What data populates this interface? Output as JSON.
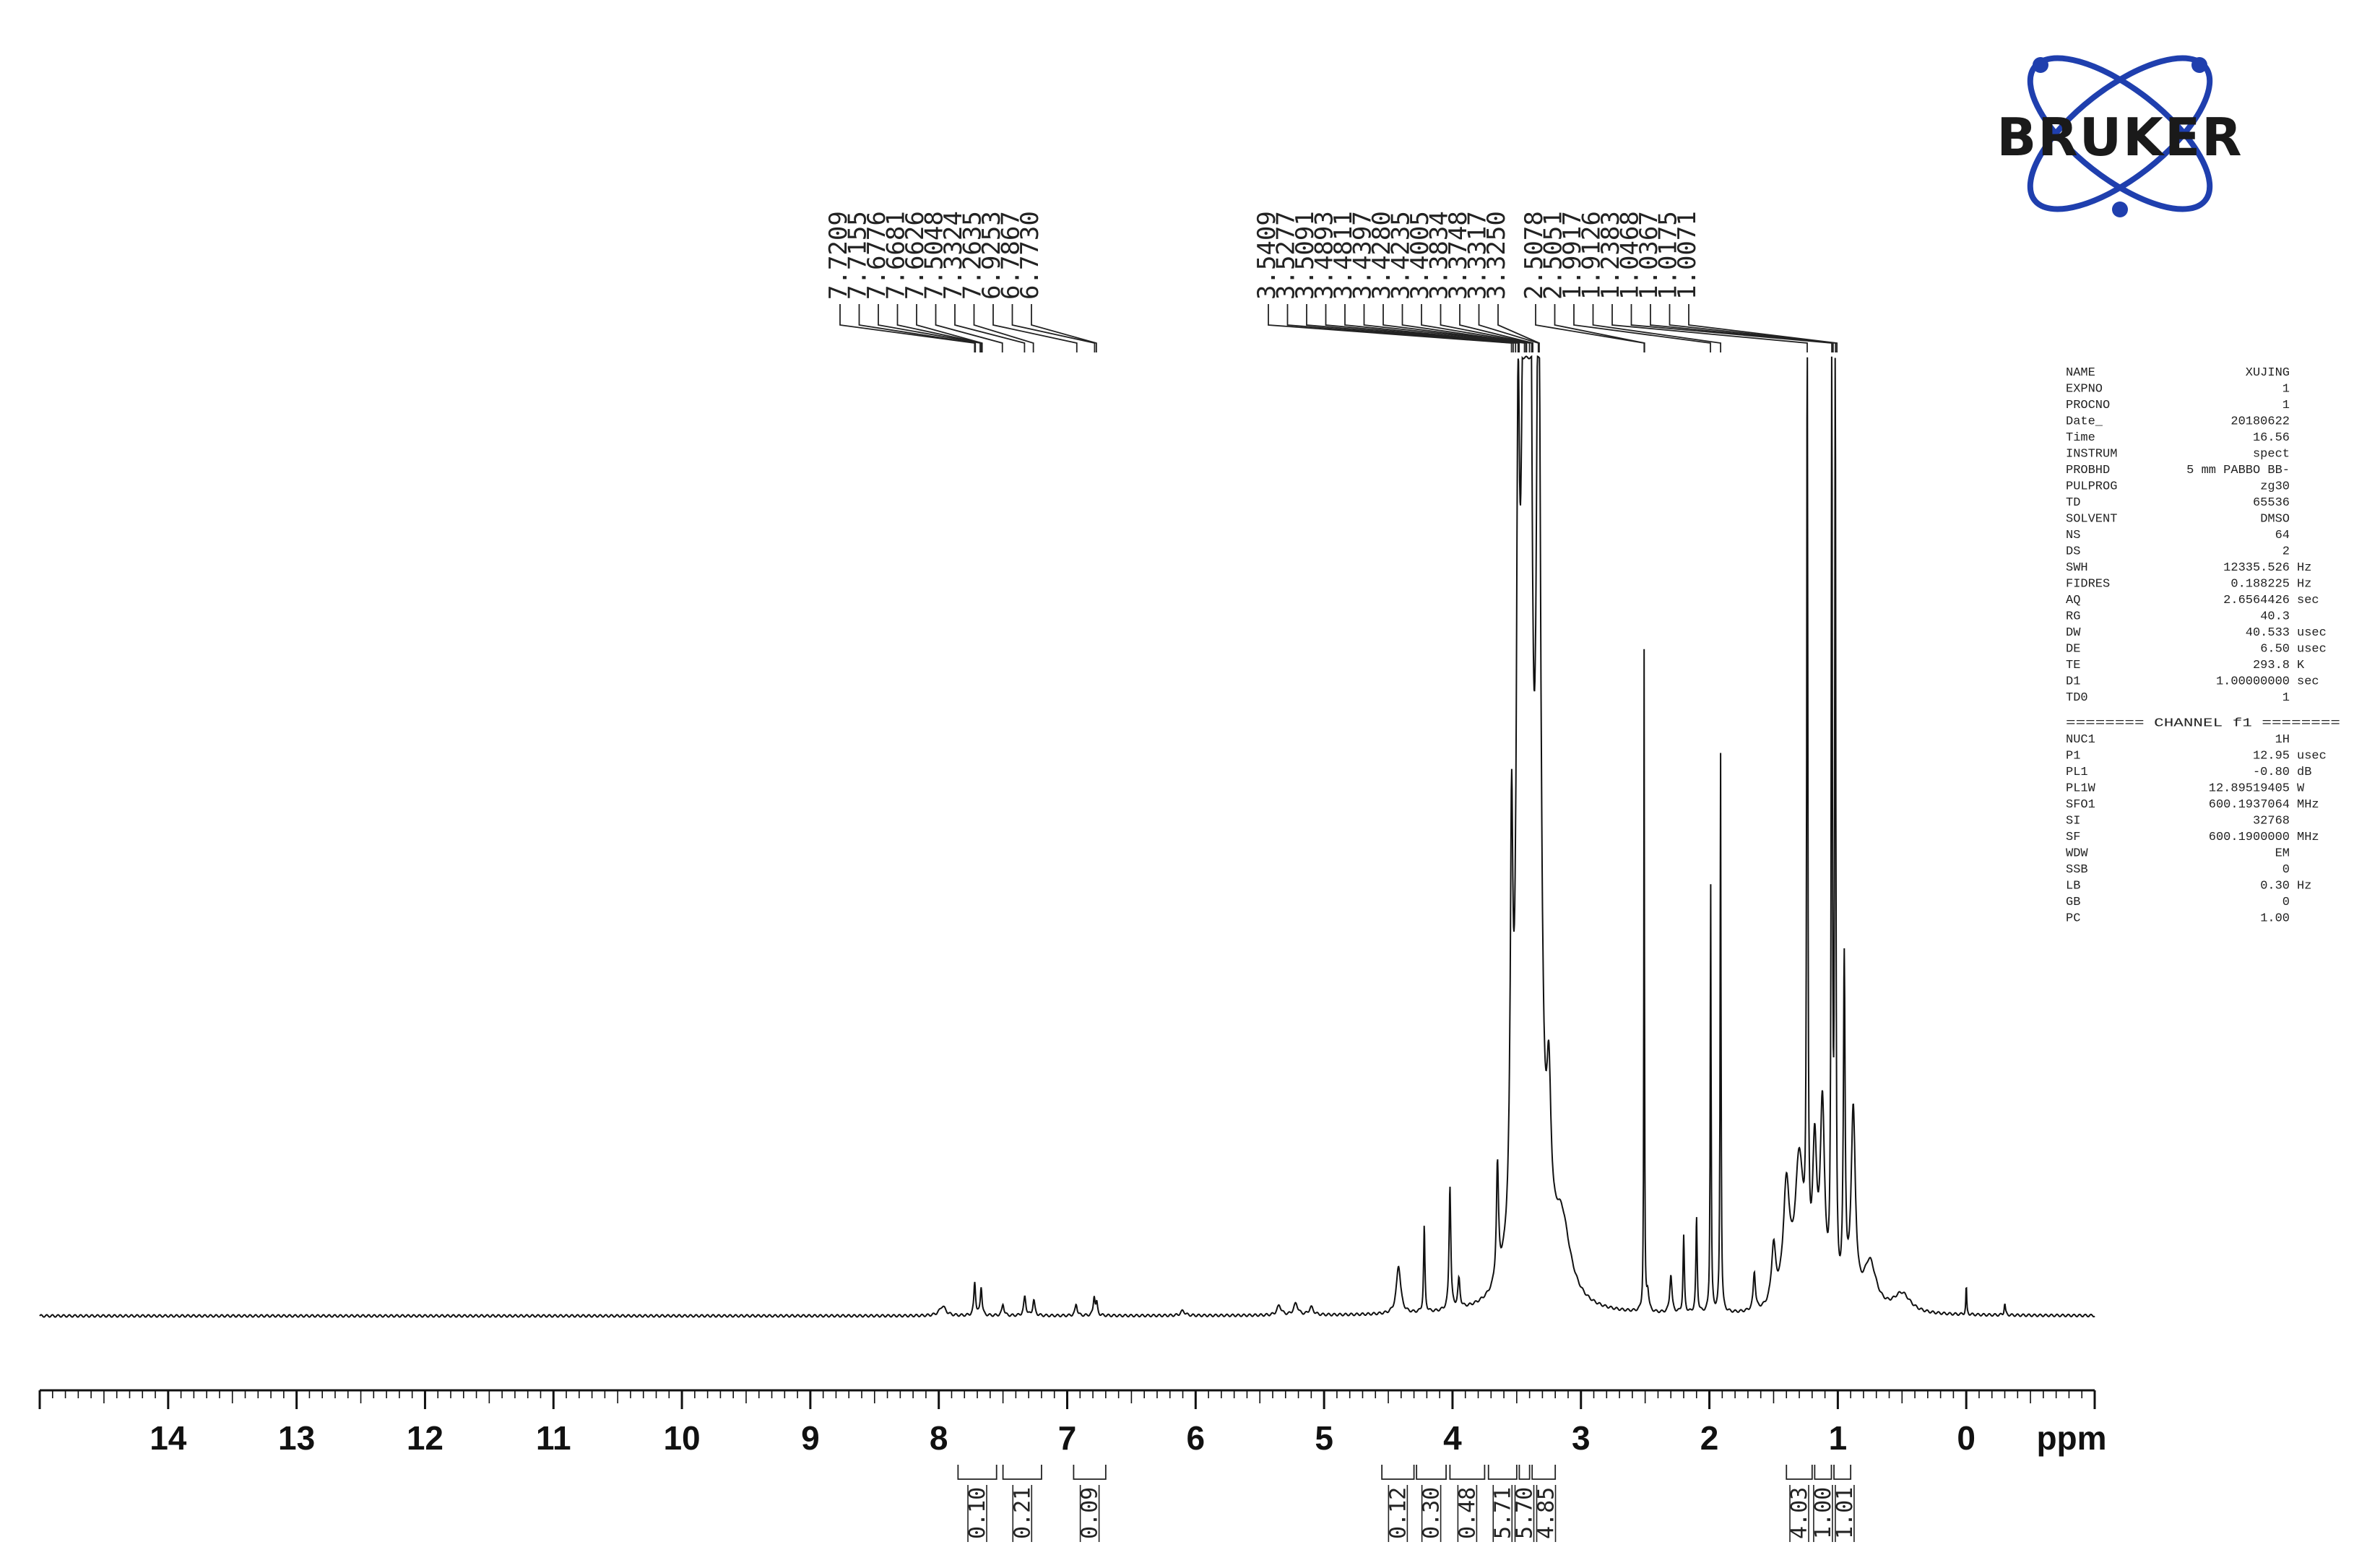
{
  "chart_data": {
    "type": "line",
    "xlabel": "ppm",
    "x_reversed": true,
    "xlim": [
      15.0,
      -1.0
    ],
    "x_ticks": [
      14,
      13,
      12,
      11,
      10,
      9,
      8,
      7,
      6,
      5,
      4,
      3,
      2,
      1,
      0
    ],
    "grid": false,
    "peak_labels": [
      "7.7209",
      "7.7155",
      "7.6776",
      "7.6681",
      "7.6626",
      "7.5048",
      "7.3324",
      "7.2635",
      "6.9253",
      "6.7867",
      "6.7730",
      "3.5409",
      "3.5277",
      "3.5091",
      "3.4893",
      "3.4811",
      "3.4397",
      "3.4280",
      "3.4235",
      "3.4005",
      "3.3834",
      "3.3748",
      "3.3317",
      "3.3250",
      "2.5078",
      "2.5051",
      "1.9917",
      "1.9126",
      "1.2383",
      "1.0468",
      "1.0367",
      "1.0175",
      "1.0071"
    ],
    "integrals": [
      {
        "from": 7.85,
        "to": 7.55,
        "value": "0.10"
      },
      {
        "from": 7.5,
        "to": 7.2,
        "value": "0.21"
      },
      {
        "from": 6.95,
        "to": 6.7,
        "value": "0.09"
      },
      {
        "from": 4.55,
        "to": 4.3,
        "value": "0.12"
      },
      {
        "from": 4.28,
        "to": 4.05,
        "value": "0.30"
      },
      {
        "from": 4.02,
        "to": 3.75,
        "value": "0.48"
      },
      {
        "from": 3.72,
        "to": 3.5,
        "value": "5.71"
      },
      {
        "from": 3.48,
        "to": 3.4,
        "value": "5.70"
      },
      {
        "from": 3.38,
        "to": 3.2,
        "value": "4.85"
      },
      {
        "from": 1.4,
        "to": 1.2,
        "value": "4.03"
      },
      {
        "from": 1.18,
        "to": 1.05,
        "value": "1.00"
      },
      {
        "from": 1.03,
        "to": 0.9,
        "value": "1.01"
      }
    ],
    "spectrum_peaks": [
      {
        "ppm": 7.97,
        "h": 0.01,
        "w": 0.03
      },
      {
        "ppm": 7.72,
        "h": 0.035,
        "w": 0.008
      },
      {
        "ppm": 7.67,
        "h": 0.03,
        "w": 0.008
      },
      {
        "ppm": 7.5,
        "h": 0.012,
        "w": 0.01
      },
      {
        "ppm": 7.33,
        "h": 0.02,
        "w": 0.01
      },
      {
        "ppm": 7.26,
        "h": 0.016,
        "w": 0.01
      },
      {
        "ppm": 6.93,
        "h": 0.012,
        "w": 0.01
      },
      {
        "ppm": 6.79,
        "h": 0.02,
        "w": 0.008
      },
      {
        "ppm": 6.77,
        "h": 0.012,
        "w": 0.008
      },
      {
        "ppm": 6.1,
        "h": 0.005,
        "w": 0.02
      },
      {
        "ppm": 5.35,
        "h": 0.01,
        "w": 0.02
      },
      {
        "ppm": 5.22,
        "h": 0.012,
        "w": 0.02
      },
      {
        "ppm": 5.1,
        "h": 0.008,
        "w": 0.02
      },
      {
        "ppm": 4.42,
        "h": 0.05,
        "w": 0.02
      },
      {
        "ppm": 4.22,
        "h": 0.09,
        "w": 0.006
      },
      {
        "ppm": 4.02,
        "h": 0.13,
        "w": 0.008
      },
      {
        "ppm": 3.95,
        "h": 0.03,
        "w": 0.01
      },
      {
        "ppm": 3.65,
        "h": 0.12,
        "w": 0.01
      },
      {
        "ppm": 3.54,
        "h": 0.4,
        "w": 0.012
      },
      {
        "ppm": 3.49,
        "h": 0.65,
        "w": 0.015
      },
      {
        "ppm": 3.44,
        "h": 1.0,
        "w": 0.03
      },
      {
        "ppm": 3.4,
        "h": 1.0,
        "w": 0.02
      },
      {
        "ppm": 3.33,
        "h": 1.0,
        "w": 0.02
      },
      {
        "ppm": 3.25,
        "h": 0.15,
        "w": 0.02
      },
      {
        "ppm": 3.15,
        "h": 0.08,
        "w": 0.08
      },
      {
        "ppm": 2.508,
        "h": 0.69,
        "w": 0.003
      },
      {
        "ppm": 2.48,
        "h": 0.02,
        "w": 0.01
      },
      {
        "ppm": 2.3,
        "h": 0.04,
        "w": 0.01
      },
      {
        "ppm": 2.2,
        "h": 0.08,
        "w": 0.006
      },
      {
        "ppm": 2.1,
        "h": 0.1,
        "w": 0.006
      },
      {
        "ppm": 1.99,
        "h": 0.45,
        "w": 0.004
      },
      {
        "ppm": 1.913,
        "h": 0.59,
        "w": 0.004
      },
      {
        "ppm": 1.65,
        "h": 0.04,
        "w": 0.01
      },
      {
        "ppm": 1.5,
        "h": 0.06,
        "w": 0.02
      },
      {
        "ppm": 1.4,
        "h": 0.12,
        "w": 0.03
      },
      {
        "ppm": 1.3,
        "h": 0.15,
        "w": 0.04
      },
      {
        "ppm": 1.238,
        "h": 1.0,
        "w": 0.005
      },
      {
        "ppm": 1.18,
        "h": 0.15,
        "w": 0.02
      },
      {
        "ppm": 1.12,
        "h": 0.2,
        "w": 0.02
      },
      {
        "ppm": 1.047,
        "h": 1.0,
        "w": 0.005
      },
      {
        "ppm": 1.02,
        "h": 1.0,
        "w": 0.005
      },
      {
        "ppm": 0.95,
        "h": 0.35,
        "w": 0.008
      },
      {
        "ppm": 0.88,
        "h": 0.2,
        "w": 0.02
      },
      {
        "ppm": 0.75,
        "h": 0.05,
        "w": 0.06
      },
      {
        "ppm": 0.5,
        "h": 0.02,
        "w": 0.08
      },
      {
        "ppm": 0.0,
        "h": 0.03,
        "w": 0.004
      },
      {
        "ppm": -0.3,
        "h": 0.012,
        "w": 0.006
      }
    ]
  },
  "logo": {
    "text": "BRUKER"
  },
  "acquisition_params": [
    [
      "NAME",
      "XUJING",
      ""
    ],
    [
      "EXPNO",
      "1",
      ""
    ],
    [
      "PROCNO",
      "1",
      ""
    ],
    [
      "Date_",
      "20180622",
      ""
    ],
    [
      "Time",
      "16.56",
      ""
    ],
    [
      "INSTRUM",
      "spect",
      ""
    ],
    [
      "PROBHD",
      "5 mm PABBO BB-",
      ""
    ],
    [
      "PULPROG",
      "zg30",
      ""
    ],
    [
      "TD",
      "65536",
      ""
    ],
    [
      "SOLVENT",
      "DMSO",
      ""
    ],
    [
      "NS",
      "64",
      ""
    ],
    [
      "DS",
      "2",
      ""
    ],
    [
      "SWH",
      "12335.526",
      "Hz"
    ],
    [
      "FIDRES",
      "0.188225",
      "Hz"
    ],
    [
      "AQ",
      "2.6564426",
      "sec"
    ],
    [
      "RG",
      "40.3",
      ""
    ],
    [
      "DW",
      "40.533",
      "usec"
    ],
    [
      "DE",
      "6.50",
      "usec"
    ],
    [
      "TE",
      "293.8",
      "K"
    ],
    [
      "D1",
      "1.00000000",
      "sec"
    ],
    [
      "TD0",
      "1",
      ""
    ]
  ],
  "channel_header": "======== CHANNEL f1 ========",
  "channel_params": [
    [
      "NUC1",
      "1H",
      ""
    ],
    [
      "P1",
      "12.95",
      "usec"
    ],
    [
      "PL1",
      "-0.80",
      "dB"
    ],
    [
      "PL1W",
      "12.89519405",
      "W"
    ],
    [
      "SFO1",
      "600.1937064",
      "MHz"
    ],
    [
      "SI",
      "32768",
      ""
    ],
    [
      "SF",
      "600.1900000",
      "MHz"
    ],
    [
      "WDW",
      "EM",
      ""
    ],
    [
      "SSB",
      "0",
      ""
    ],
    [
      "LB",
      "0.30",
      "Hz"
    ],
    [
      "GB",
      "0",
      ""
    ],
    [
      "PC",
      "1.00",
      ""
    ]
  ]
}
